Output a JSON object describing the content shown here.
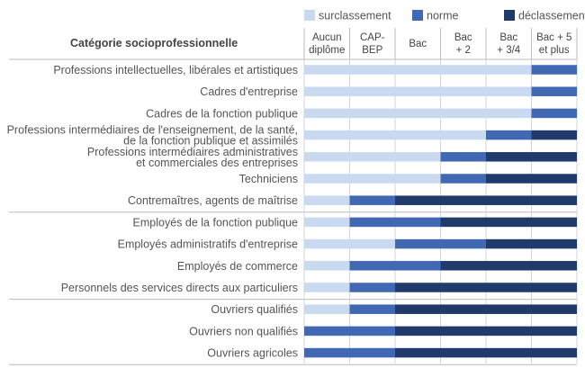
{
  "chart_data": {
    "type": "bar",
    "orientation": "horizontal-stacked",
    "category_header": "Catégorie socioprofessionnelle",
    "columns": [
      "Aucun|diplôme",
      "CAP-|BEP",
      "Bac",
      "Bac|+ 2",
      "Bac|+ 3/4",
      "Bac + 5|et plus"
    ],
    "legend": [
      {
        "key": "sur",
        "label": "surclassement",
        "color": "#c9daf0"
      },
      {
        "key": "norm",
        "label": "norme",
        "color": "#4169b3"
      },
      {
        "key": "dec",
        "label": "déclassement",
        "color": "#1f3a6b"
      }
    ],
    "categories": [
      {
        "label": "Professions intellectuelles, libérales et artistiques",
        "sur": [
          0,
          5
        ],
        "norm": [
          5,
          6
        ],
        "dec": null
      },
      {
        "label": "Cadres d'entreprise",
        "sur": [
          0,
          5
        ],
        "norm": [
          5,
          6
        ],
        "dec": null
      },
      {
        "label": "Cadres de la fonction publique",
        "sur": [
          0,
          5
        ],
        "norm": [
          5,
          6
        ],
        "dec": null
      },
      {
        "label": "Professions intermédiaires de l'enseignement, de la santé,|de la fonction publique et assimilés",
        "sur": [
          0,
          4
        ],
        "norm": [
          4,
          5
        ],
        "dec": [
          5,
          6
        ]
      },
      {
        "label": "Professions intermédiaires administratives|et commerciales des entreprises",
        "sur": [
          0,
          3
        ],
        "norm": [
          3,
          4
        ],
        "dec": [
          4,
          6
        ]
      },
      {
        "label": "Techniciens",
        "sur": [
          0,
          3
        ],
        "norm": [
          3,
          4
        ],
        "dec": [
          4,
          6
        ]
      },
      {
        "label": "Contremaîtres, agents de maîtrise",
        "sur": [
          0,
          1
        ],
        "norm": [
          1,
          2
        ],
        "dec": [
          2,
          6
        ]
      },
      {
        "label": "Employés de la fonction publique",
        "sur": [
          0,
          1
        ],
        "norm": [
          1,
          3
        ],
        "dec": [
          3,
          6
        ]
      },
      {
        "label": "Employés administratifs d'entreprise",
        "sur": [
          0,
          2
        ],
        "norm": [
          2,
          4
        ],
        "dec": [
          4,
          6
        ]
      },
      {
        "label": "Employés de commerce",
        "sur": [
          0,
          1
        ],
        "norm": [
          1,
          3
        ],
        "dec": [
          3,
          6
        ]
      },
      {
        "label": "Personnels des services directs aux particuliers",
        "sur": [
          0,
          1
        ],
        "norm": [
          1,
          2
        ],
        "dec": [
          2,
          6
        ]
      },
      {
        "label": "Ouvriers qualifiés",
        "sur": [
          0,
          1
        ],
        "norm": [
          1,
          2
        ],
        "dec": [
          2,
          6
        ]
      },
      {
        "label": "Ouvriers non qualifiés",
        "sur": null,
        "norm": [
          0,
          2
        ],
        "dec": [
          2,
          6
        ]
      },
      {
        "label": "Ouvriers agricoles",
        "sur": null,
        "norm": [
          0,
          2
        ],
        "dec": [
          2,
          6
        ]
      }
    ],
    "groups": [
      [
        0,
        6
      ],
      [
        7,
        10
      ],
      [
        11,
        13
      ]
    ]
  }
}
